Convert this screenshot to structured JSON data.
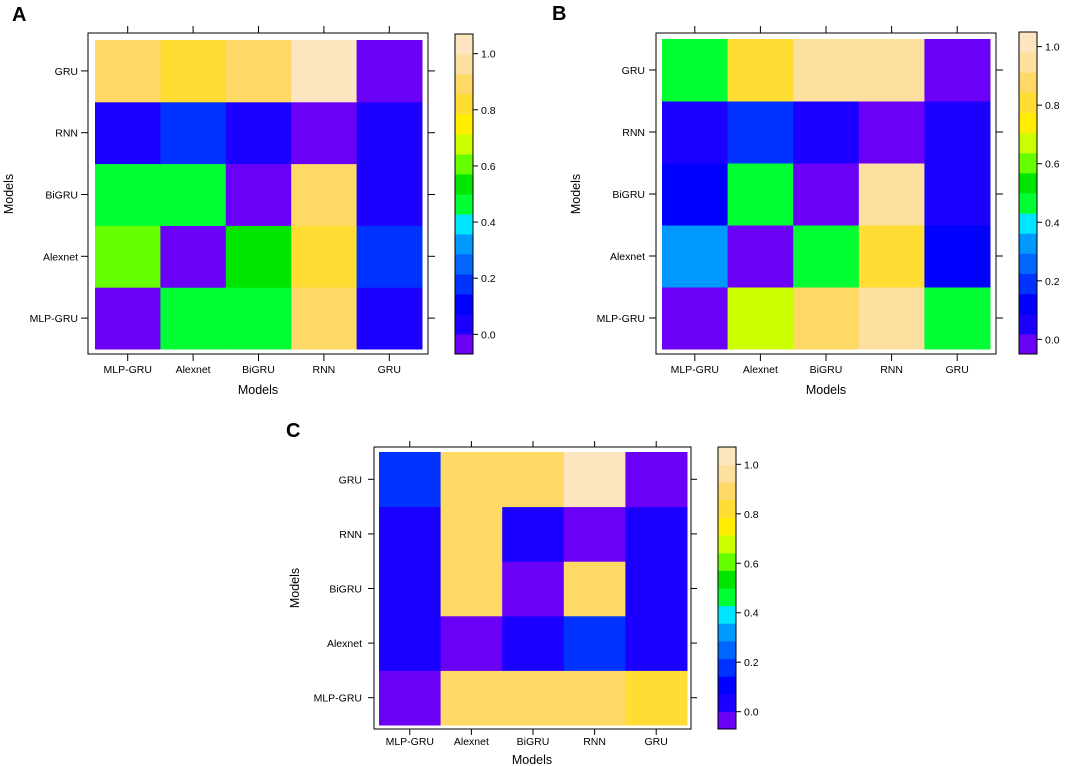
{
  "chart_data": [
    {
      "type": "heatmap",
      "panel": "A",
      "x_categories": [
        "MLP-GRU",
        "Alexnet",
        "BiGRU",
        "RNN",
        "GRU"
      ],
      "y_categories": [
        "MLP-GRU",
        "Alexnet",
        "BiGRU",
        "RNN",
        "GRU"
      ],
      "xlabel": "Models",
      "ylabel": "Models",
      "values": [
        [
          -0.05,
          0.47,
          0.47,
          0.88,
          0.02
        ],
        [
          0.6,
          -0.05,
          0.53,
          0.8,
          0.15
        ],
        [
          0.47,
          0.47,
          -0.05,
          0.92,
          0.02
        ],
        [
          0.05,
          0.17,
          0.02,
          -0.05,
          0.02
        ],
        [
          0.92,
          0.85,
          0.92,
          1.02,
          -0.05
        ]
      ],
      "colorbar": {
        "ticks": [
          "0.0",
          "0.2",
          "0.4",
          "0.6",
          "0.8",
          "1.0"
        ],
        "range": [
          -0.07,
          1.07
        ]
      }
    },
    {
      "type": "heatmap",
      "panel": "B",
      "x_categories": [
        "MLP-GRU",
        "Alexnet",
        "BiGRU",
        "RNN",
        "GRU"
      ],
      "y_categories": [
        "MLP-GRU",
        "Alexnet",
        "BiGRU",
        "RNN",
        "GRU"
      ],
      "xlabel": "Models",
      "ylabel": "Models",
      "values": [
        [
          -0.03,
          0.7,
          0.85,
          0.96,
          0.47
        ],
        [
          0.32,
          -0.03,
          0.47,
          0.8,
          0.15
        ],
        [
          0.15,
          0.47,
          -0.03,
          0.92,
          0.08
        ],
        [
          0.02,
          0.17,
          0.02,
          -0.03,
          0.02
        ],
        [
          0.47,
          0.8,
          0.92,
          0.92,
          -0.03
        ]
      ],
      "colorbar": {
        "ticks": [
          "0.0",
          "0.2",
          "0.4",
          "0.6",
          "0.8",
          "1.0"
        ],
        "range": [
          -0.05,
          1.05
        ]
      }
    },
    {
      "type": "heatmap",
      "panel": "C",
      "x_categories": [
        "MLP-GRU",
        "Alexnet",
        "BiGRU",
        "RNN",
        "GRU"
      ],
      "y_categories": [
        "MLP-GRU",
        "Alexnet",
        "BiGRU",
        "RNN",
        "GRU"
      ],
      "xlabel": "Models",
      "ylabel": "Models",
      "values": [
        [
          -0.05,
          0.92,
          0.92,
          0.92,
          0.8
        ],
        [
          0.02,
          -0.05,
          0.02,
          0.17,
          0.02
        ],
        [
          0.02,
          0.92,
          -0.05,
          0.92,
          0.02
        ],
        [
          0.02,
          0.88,
          0.02,
          -0.05,
          0.02
        ],
        [
          0.15,
          0.92,
          0.92,
          1.02,
          -0.05
        ]
      ],
      "colorbar": {
        "ticks": [
          "0.0",
          "0.2",
          "0.4",
          "0.6",
          "0.8",
          "1.0"
        ],
        "range": [
          -0.07,
          1.07
        ]
      }
    }
  ],
  "palette": [
    "#6a00f5",
    "#1c00ff",
    "#0000ff",
    "#0033ff",
    "#0066ff",
    "#0099ff",
    "#00e5ff",
    "#00ff33",
    "#00e600",
    "#66ff00",
    "#ccff00",
    "#ffee00",
    "#ffdd33",
    "#ffd966",
    "#fde0a0",
    "#fde5bf"
  ]
}
